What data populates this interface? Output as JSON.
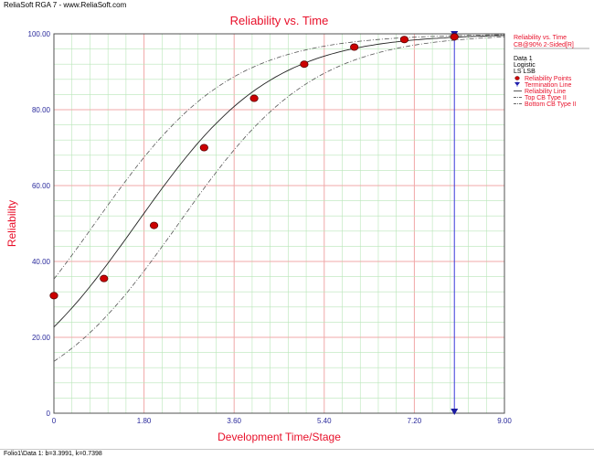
{
  "window": {
    "title": "ReliaSoft RGA 7 - www.ReliaSoft.com",
    "status": "Folio1\\Data 1: b=3.3991, k=0.7398"
  },
  "colors": {
    "title": "#e8102a",
    "axis_text": "#2a2a9c",
    "points": "#cc0000",
    "termination_line": "#3a3ad8",
    "grid_major": "#f0a8a8",
    "grid_minor": "#b8e6b8"
  },
  "chart_data": {
    "type": "scatter",
    "title": "Reliability vs. Time",
    "xlabel": "Development Time/Stage",
    "ylabel": "Reliability",
    "xlim": [
      0,
      9
    ],
    "ylim": [
      0,
      100
    ],
    "x_ticks": [
      "0",
      "1.80",
      "3.60",
      "5.40",
      "7.20",
      "9.00"
    ],
    "y_ticks": [
      "0",
      "20.00",
      "40.00",
      "60.00",
      "80.00",
      "100.00"
    ],
    "grid": true,
    "legend_position": "top-right",
    "legend_header": [
      "Reliability vs. Time",
      "CB@90% 2-Sided[R]"
    ],
    "legend_info": [
      "Data 1",
      "Logistic",
      "LS LSB"
    ],
    "legend_entries": [
      {
        "name": "Reliability Points",
        "symbol": "dot"
      },
      {
        "name": "Termination Line",
        "symbol": "triangle"
      },
      {
        "name": "Reliability Line",
        "symbol": "solid"
      },
      {
        "name": "Top CB Type II",
        "symbol": "dashdot"
      },
      {
        "name": "Bottom CB Type II",
        "symbol": "dashdot"
      }
    ],
    "reliability_points": [
      {
        "x": 0,
        "y": 31.0
      },
      {
        "x": 1,
        "y": 35.5
      },
      {
        "x": 2,
        "y": 49.5
      },
      {
        "x": 3,
        "y": 70.0
      },
      {
        "x": 4,
        "y": 83.0
      },
      {
        "x": 5,
        "y": 92.0
      },
      {
        "x": 6,
        "y": 96.5
      },
      {
        "x": 7,
        "y": 98.5
      },
      {
        "x": 8,
        "y": 99.2
      }
    ],
    "termination_x": 8,
    "model": {
      "b": 3.3991,
      "k": 0.7398
    },
    "cb_offset": 0.62
  }
}
